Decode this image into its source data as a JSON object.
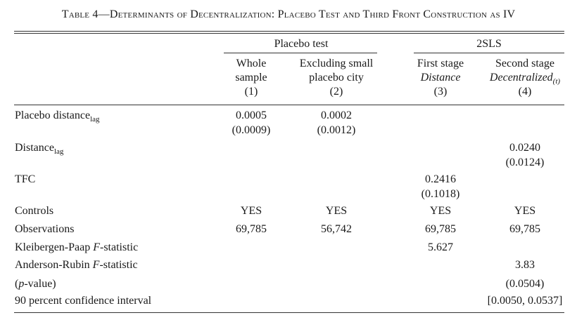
{
  "caption": {
    "prefix": "Table 4—",
    "title": "Determinants of Decentralization: Placebo Test and Third Front Construction as IV"
  },
  "groups": {
    "placebo": "Placebo test",
    "tsls": "2SLS"
  },
  "columns": [
    {
      "line1": "Whole",
      "line2": "sample",
      "num": "(1)"
    },
    {
      "line1": "Excluding small",
      "line2": "placebo city",
      "num": "(2)"
    },
    {
      "line1": "First stage",
      "line2": "Distance",
      "num": "(3)"
    },
    {
      "line1": "Second stage",
      "line2": "Decentralized",
      "line2_sub": "(t)",
      "num": "(4)"
    }
  ],
  "rows": {
    "placebo_distance": {
      "label": "Placebo distance",
      "sub": "lag",
      "c1": "0.0005",
      "c1se": "(0.0009)",
      "c2": "0.0002",
      "c2se": "(0.0012)"
    },
    "distance": {
      "label": "Distance",
      "sub": "lag",
      "c4": "0.0240",
      "c4se": "(0.0124)"
    },
    "tfc": {
      "label": "TFC",
      "c3": "0.2416",
      "c3se": "(0.1018)"
    },
    "controls": {
      "label": "Controls",
      "c1": "YES",
      "c2": "YES",
      "c3": "YES",
      "c4": "YES"
    },
    "observations": {
      "label": "Observations",
      "c1": "69,785",
      "c2": "56,742",
      "c3": "69,785",
      "c4": "69,785"
    },
    "kp": {
      "label_pre": "Kleibergen-Paap ",
      "label_it": "F",
      "label_post": "-statistic",
      "c3": "5.627"
    },
    "ar": {
      "label_pre": "Anderson-Rubin ",
      "label_it": "F",
      "label_post": "-statistic",
      "c4": "3.83"
    },
    "pvalue": {
      "label_pre": "(",
      "label_it": "p",
      "label_post": "-value)",
      "c4": "(0.0504)"
    },
    "ci": {
      "label": "90 percent confidence interval",
      "c4": "[0.0050, 0.0537]"
    }
  }
}
